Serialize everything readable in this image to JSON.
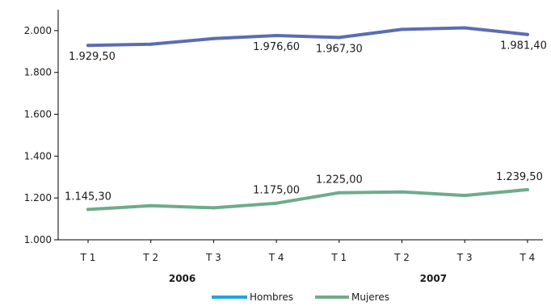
{
  "chart_data": {
    "type": "line",
    "categories": [
      "T 1",
      "T 2",
      "T 3",
      "T 4",
      "T 1",
      "T 2",
      "T 3",
      "T 4"
    ],
    "groups": [
      {
        "label": "2006",
        "span": [
          0,
          3
        ]
      },
      {
        "label": "2007",
        "span": [
          4,
          7
        ]
      }
    ],
    "series": [
      {
        "name": "Hombres",
        "color": "#5b6db1",
        "legend_color": "#19a7e0",
        "values": [
          1929.5,
          1935.0,
          1962.0,
          1976.6,
          1967.3,
          2006.0,
          2013.0,
          1981.4
        ],
        "data_labels": [
          "1.929,50",
          "",
          "",
          "1.976,60",
          "1.967,30",
          "",
          "",
          "1.981,40"
        ]
      },
      {
        "name": "Mujeres",
        "color": "#6fab8c",
        "legend_color": "#6fab8c",
        "values": [
          1145.3,
          1163.0,
          1153.0,
          1175.0,
          1225.0,
          1229.0,
          1212.0,
          1239.5
        ],
        "data_labels": [
          "1.145,30",
          "",
          "",
          "1.175,00",
          "1.225,00",
          "",
          "",
          "1.239,50"
        ]
      }
    ],
    "ylim": [
      1000,
      2100
    ],
    "yticks": [
      1000,
      1200,
      1400,
      1600,
      1800,
      2000
    ],
    "ytick_labels": [
      "1.000",
      "1.200",
      "1.400",
      "1.600",
      "1.800",
      "2.000"
    ],
    "grid": false,
    "legend_position": "bottom-center",
    "title": "",
    "xlabel": "",
    "ylabel": ""
  }
}
